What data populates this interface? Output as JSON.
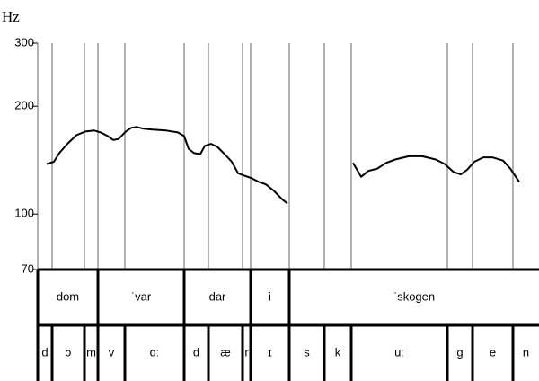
{
  "chart_data": {
    "type": "line",
    "y_label": "Hz",
    "log_scale_y": true,
    "ylim": [
      70,
      300
    ],
    "yticks": [
      70,
      100,
      200,
      300
    ],
    "xlim": [
      0,
      2.79
    ],
    "series": [
      {
        "color": "#000000",
        "x": [
          0.05,
          0.09,
          0.12,
          0.165,
          0.215,
          0.265,
          0.315,
          0.35,
          0.39,
          0.42,
          0.45,
          0.49,
          0.52,
          0.55,
          0.59,
          0.64,
          0.715,
          0.78,
          0.815,
          0.84,
          0.87,
          0.905,
          0.93,
          0.965,
          1.0,
          1.04,
          1.08,
          1.115,
          1.15,
          1.19,
          1.23,
          1.27,
          1.315,
          1.36,
          1.39,
          1.6,
          1.755,
          1.8,
          1.84,
          1.89,
          1.94,
          1.99,
          2.065,
          2.14,
          2.215,
          2.265,
          2.315,
          2.355,
          2.39,
          2.43,
          2.48,
          2.53,
          2.59,
          2.63,
          2.68
        ],
        "values": [
          138,
          140,
          148,
          157,
          166,
          170,
          171,
          169,
          165,
          161,
          162,
          170,
          174,
          175,
          173,
          172,
          171,
          169,
          165,
          152,
          148,
          147,
          155,
          157,
          154,
          147,
          140,
          130,
          128,
          126,
          123,
          121,
          116,
          110,
          107,
          null,
          139,
          127,
          132,
          134,
          139,
          142,
          145,
          145,
          142,
          138,
          131,
          129,
          133,
          140,
          144,
          144,
          141,
          134,
          123
        ]
      }
    ],
    "words": [
      {
        "label": "dom",
        "start": 0,
        "end": 0.335
      },
      {
        "label": "ˈvar",
        "start": 0.335,
        "end": 0.815
      },
      {
        "label": "dar",
        "start": 0.815,
        "end": 1.185
      },
      {
        "label": "i",
        "start": 1.185,
        "end": 1.4
      },
      {
        "label": "ˈskogen",
        "start": 1.4,
        "end": 2.79
      }
    ],
    "phones": [
      {
        "label": "d",
        "start": 0,
        "end": 0.08
      },
      {
        "label": "ɔ",
        "start": 0.08,
        "end": 0.26
      },
      {
        "label": "m",
        "start": 0.26,
        "end": 0.335
      },
      {
        "label": "v",
        "start": 0.335,
        "end": 0.485
      },
      {
        "label": "ɑː",
        "start": 0.485,
        "end": 0.815
      },
      {
        "label": "d",
        "start": 0.815,
        "end": 0.95
      },
      {
        "label": "æ",
        "start": 0.95,
        "end": 1.14
      },
      {
        "label": "r",
        "start": 1.14,
        "end": 1.185
      },
      {
        "label": "ɪ",
        "start": 1.185,
        "end": 1.4
      },
      {
        "label": "s",
        "start": 1.4,
        "end": 1.595
      },
      {
        "label": "k",
        "start": 1.595,
        "end": 1.745
      },
      {
        "label": "uː",
        "start": 1.745,
        "end": 2.28
      },
      {
        "label": "g",
        "start": 2.28,
        "end": 2.42
      },
      {
        "label": "e",
        "start": 2.42,
        "end": 2.645
      },
      {
        "label": "n",
        "start": 2.645,
        "end": 2.79
      }
    ]
  }
}
